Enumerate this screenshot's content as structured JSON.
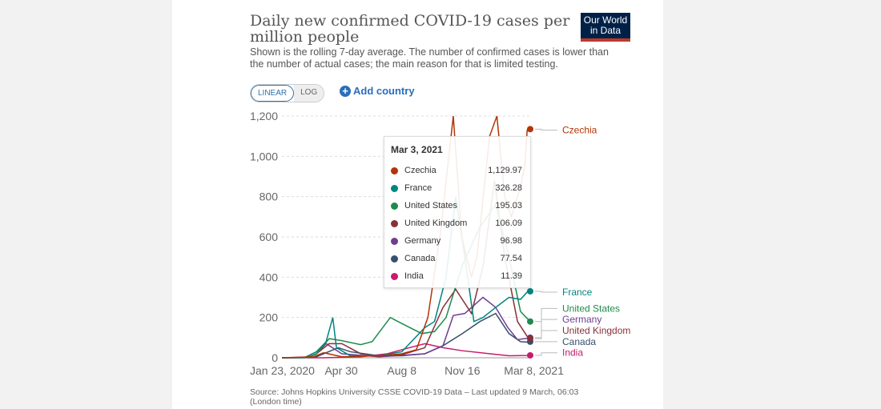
{
  "header": {
    "title": "Daily new confirmed COVID-19 cases per million people",
    "subtitle": "Shown is the rolling 7-day average. The number of confirmed cases is lower than the number of actual cases; the main reason for that is limited testing.",
    "logo": "Our World in Data"
  },
  "controls": {
    "linear": "LINEAR",
    "log": "LOG",
    "add_country": "Add country"
  },
  "source": "Source: Johns Hopkins University CSSE COVID-19 Data – Last updated 9 March, 06:03 (London time)",
  "tooltip": {
    "date": "Mar 3, 2021",
    "rows": [
      {
        "name": "Czechia",
        "value": "1,129.97"
      },
      {
        "name": "France",
        "value": "326.28"
      },
      {
        "name": "United States",
        "value": "195.03"
      },
      {
        "name": "United Kingdom",
        "value": "106.09"
      },
      {
        "name": "Germany",
        "value": "96.98"
      },
      {
        "name": "Canada",
        "value": "77.54"
      },
      {
        "name": "India",
        "value": "11.39"
      }
    ]
  },
  "chart_data": {
    "type": "line",
    "xlim": [
      "2020-01-23",
      "2021-03-08"
    ],
    "ylim": [
      0,
      1200
    ],
    "yticks": [
      0,
      200,
      400,
      600,
      800,
      1000,
      1200
    ],
    "ytick_labels": [
      "0",
      "200",
      "400",
      "600",
      "800",
      "1,000",
      "1,200"
    ],
    "xticks": [
      "2020-01-23",
      "2020-04-30",
      "2020-08-08",
      "2020-11-16",
      "2021-03-08"
    ],
    "xtick_labels": [
      "Jan 23, 2020",
      "Apr 30",
      "Aug 8",
      "Nov 16",
      "Mar 8, 2021"
    ],
    "grid": "horizontal dashed",
    "legend": "right (end labels)",
    "series": [
      {
        "name": "Czechia",
        "color": "#b13507",
        "labelY": 1130,
        "points": [
          [
            "2020-01-23",
            0
          ],
          [
            "2020-03-15",
            5
          ],
          [
            "2020-04-01",
            25
          ],
          [
            "2020-05-01",
            5
          ],
          [
            "2020-07-01",
            10
          ],
          [
            "2020-08-08",
            20
          ],
          [
            "2020-09-01",
            40
          ],
          [
            "2020-09-20",
            200
          ],
          [
            "2020-10-10",
            600
          ],
          [
            "2020-11-01",
            1200
          ],
          [
            "2020-11-15",
            600
          ],
          [
            "2020-12-01",
            400
          ],
          [
            "2020-12-10",
            500
          ],
          [
            "2020-12-31",
            1100
          ],
          [
            "2021-01-12",
            1200
          ],
          [
            "2021-01-25",
            800
          ],
          [
            "2021-02-05",
            700
          ],
          [
            "2021-02-20",
            850
          ],
          [
            "2021-02-27",
            950
          ],
          [
            "2021-03-03",
            1130
          ],
          [
            "2021-03-08",
            1135
          ]
        ]
      },
      {
        "name": "France",
        "color": "#00847e",
        "labelY": 326,
        "points": [
          [
            "2020-01-23",
            0
          ],
          [
            "2020-03-01",
            2
          ],
          [
            "2020-03-20",
            30
          ],
          [
            "2020-04-05",
            80
          ],
          [
            "2020-04-16",
            200
          ],
          [
            "2020-04-22",
            50
          ],
          [
            "2020-05-15",
            10
          ],
          [
            "2020-07-01",
            10
          ],
          [
            "2020-08-08",
            30
          ],
          [
            "2020-09-15",
            150
          ],
          [
            "2020-10-01",
            180
          ],
          [
            "2020-10-20",
            400
          ],
          [
            "2020-11-05",
            800
          ],
          [
            "2020-11-20",
            500
          ],
          [
            "2020-12-05",
            180
          ],
          [
            "2020-12-20",
            200
          ],
          [
            "2021-01-10",
            250
          ],
          [
            "2021-02-01",
            300
          ],
          [
            "2021-02-20",
            290
          ],
          [
            "2021-03-03",
            326
          ],
          [
            "2021-03-08",
            330
          ]
        ]
      },
      {
        "name": "United States",
        "color": "#1f8a4c",
        "labelY": 245,
        "points": [
          [
            "2020-01-23",
            0
          ],
          [
            "2020-03-05",
            1
          ],
          [
            "2020-03-20",
            20
          ],
          [
            "2020-04-10",
            95
          ],
          [
            "2020-05-01",
            85
          ],
          [
            "2020-06-01",
            65
          ],
          [
            "2020-06-20",
            80
          ],
          [
            "2020-07-20",
            200
          ],
          [
            "2020-08-08",
            170
          ],
          [
            "2020-09-10",
            120
          ],
          [
            "2020-10-01",
            130
          ],
          [
            "2020-10-20",
            200
          ],
          [
            "2020-11-16",
            460
          ],
          [
            "2020-12-15",
            650
          ],
          [
            "2021-01-10",
            760
          ],
          [
            "2021-02-01",
            500
          ],
          [
            "2021-02-20",
            230
          ],
          [
            "2021-03-03",
            195
          ],
          [
            "2021-03-08",
            180
          ]
        ]
      },
      {
        "name": "United Kingdom",
        "color": "#883039",
        "labelY": 135,
        "points": [
          [
            "2020-01-23",
            0
          ],
          [
            "2020-03-05",
            1
          ],
          [
            "2020-03-20",
            20
          ],
          [
            "2020-04-10",
            70
          ],
          [
            "2020-05-01",
            70
          ],
          [
            "2020-06-01",
            20
          ],
          [
            "2020-07-01",
            8
          ],
          [
            "2020-08-08",
            15
          ],
          [
            "2020-09-15",
            50
          ],
          [
            "2020-10-15",
            250
          ],
          [
            "2020-11-05",
            340
          ],
          [
            "2020-12-01",
            220
          ],
          [
            "2020-12-20",
            450
          ],
          [
            "2021-01-08",
            880
          ],
          [
            "2021-01-25",
            500
          ],
          [
            "2021-02-15",
            180
          ],
          [
            "2021-03-03",
            106
          ],
          [
            "2021-03-08",
            95
          ]
        ]
      },
      {
        "name": "Germany",
        "color": "#6d3e91",
        "labelY": 190,
        "points": [
          [
            "2020-01-23",
            0
          ],
          [
            "2020-03-05",
            1
          ],
          [
            "2020-03-20",
            20
          ],
          [
            "2020-04-05",
            70
          ],
          [
            "2020-05-01",
            20
          ],
          [
            "2020-07-01",
            5
          ],
          [
            "2020-08-08",
            12
          ],
          [
            "2020-09-15",
            20
          ],
          [
            "2020-10-15",
            60
          ],
          [
            "2020-11-01",
            210
          ],
          [
            "2020-11-20",
            220
          ],
          [
            "2020-12-20",
            300
          ],
          [
            "2021-01-10",
            250
          ],
          [
            "2021-01-30",
            150
          ],
          [
            "2021-02-15",
            90
          ],
          [
            "2021-03-03",
            97
          ],
          [
            "2021-03-08",
            100
          ]
        ]
      },
      {
        "name": "Canada",
        "color": "#38506d",
        "labelY": 80,
        "points": [
          [
            "2020-01-23",
            0
          ],
          [
            "2020-03-10",
            1
          ],
          [
            "2020-03-20",
            5
          ],
          [
            "2020-04-25",
            50
          ],
          [
            "2020-05-15",
            30
          ],
          [
            "2020-07-01",
            10
          ],
          [
            "2020-08-08",
            10
          ],
          [
            "2020-09-15",
            20
          ],
          [
            "2020-10-15",
            60
          ],
          [
            "2020-11-16",
            120
          ],
          [
            "2020-12-15",
            180
          ],
          [
            "2021-01-10",
            220
          ],
          [
            "2021-02-01",
            120
          ],
          [
            "2021-02-20",
            80
          ],
          [
            "2021-03-03",
            78
          ],
          [
            "2021-03-08",
            80
          ]
        ]
      },
      {
        "name": "India",
        "color": "#c91b6b",
        "labelY": 25,
        "points": [
          [
            "2020-01-23",
            0
          ],
          [
            "2020-04-01",
            0
          ],
          [
            "2020-06-01",
            5
          ],
          [
            "2020-07-15",
            20
          ],
          [
            "2020-08-08",
            40
          ],
          [
            "2020-09-15",
            70
          ],
          [
            "2020-10-15",
            50
          ],
          [
            "2020-11-16",
            35
          ],
          [
            "2021-01-01",
            20
          ],
          [
            "2021-02-01",
            10
          ],
          [
            "2021-03-03",
            11.39
          ],
          [
            "2021-03-08",
            12
          ]
        ]
      }
    ]
  }
}
